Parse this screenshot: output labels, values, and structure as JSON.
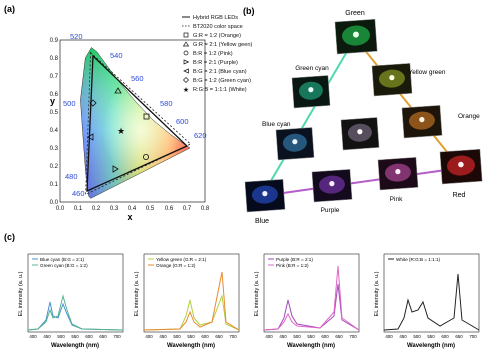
{
  "panels": {
    "a": "(a)",
    "b": "(b)",
    "c": "(c)"
  },
  "cie": {
    "ylabel": "y",
    "xlabel": "x",
    "xticks": [
      "0.0",
      "0.1",
      "0.2",
      "0.3",
      "0.4",
      "0.5",
      "0.6",
      "0.7",
      "0.8"
    ],
    "yticks": [
      "0.0",
      "0.1",
      "0.2",
      "0.3",
      "0.4",
      "0.5",
      "0.6",
      "0.7",
      "0.8",
      "0.9"
    ],
    "wavelengths": [
      "520",
      "540",
      "560",
      "580",
      "600",
      "620",
      "500",
      "480",
      "460"
    ]
  },
  "legend": [
    {
      "sym": "line",
      "text": "Hybrid RGB LEDs"
    },
    {
      "sym": "dash",
      "text": "BT2020 color space"
    },
    {
      "sym": "square",
      "text": "G:R = 1:2 (Orange)"
    },
    {
      "sym": "triangle",
      "text": "G:R = 2:1 (Yellow geen)"
    },
    {
      "sym": "circle",
      "text": "B:R = 1:2 (Pink)"
    },
    {
      "sym": "tri-right",
      "text": "B:R = 2:1 (Purple)"
    },
    {
      "sym": "tri-left",
      "text": "B:G = 2:1 (Blue cyan)"
    },
    {
      "sym": "diamond",
      "text": "B:G = 1:2 (Green cyan)"
    },
    {
      "sym": "star",
      "text": "R:G:B = 1:1:1 (White)"
    }
  ],
  "photos": {
    "green": "Green",
    "green_cyan": "Green cyan",
    "yellow_green": "Yellow green",
    "orange": "Orange",
    "blue_cyan": "Blue cyan",
    "blue": "Blue",
    "purple": "Purple",
    "pink": "Pink",
    "red": "Red"
  },
  "spectra": {
    "ylabel": "EL intensity (a. u.)",
    "xlabel": "Wavelength (nm)",
    "xticks": [
      "400",
      "450",
      "500",
      "550",
      "600",
      "650",
      "700"
    ],
    "p1": [
      "Blue cyan (B:G = 2:1)",
      "Green cyan (B:G = 1:2)"
    ],
    "p2": [
      "Yellow green (G:R = 2:1)",
      "Orange (G:R = 1:2)"
    ],
    "p3": [
      "Purple (B:R = 2:1)",
      "Pink (B:R = 1:2)"
    ],
    "p4": [
      "White (R:G:B = 1:1:1)"
    ]
  },
  "colors": {
    "blue_cyan": "#4a8fd6",
    "green_cyan": "#56b48a",
    "yellow_green": "#b5cf3c",
    "orange": "#e98a2e",
    "purple": "#a24ab8",
    "pink": "#e065c5",
    "white": "#222222"
  }
}
